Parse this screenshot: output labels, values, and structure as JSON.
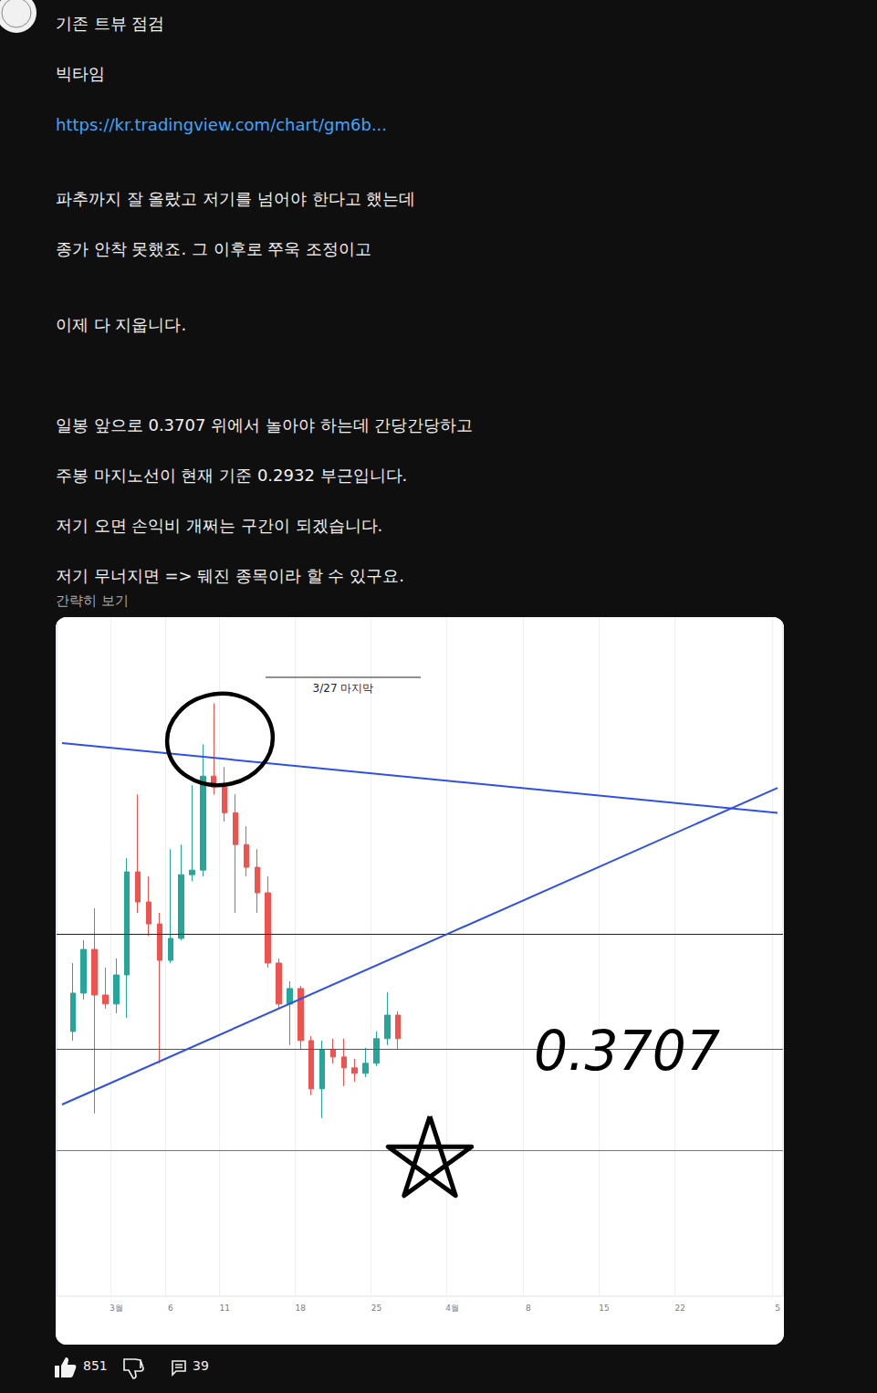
{
  "post": {
    "paragraphs": [
      "기존 트뷰 점검",
      "빅타임",
      "https://kr.tradingview.com/chart/gm6b...",
      "파추까지 잘 올랐고 저기를 넘어야 한다고 했는데",
      "종가 안착 못했죠. 그 이후로 쭈욱 조정이고",
      "이제 다 지웁니다.",
      "일봉 앞으로 0.3707 위에서 놀아야 하는데 간당간당하고",
      "주봉 마지노선이 현재 기준 0.2932 부근입니다.",
      "저기 오면 손익비 개쩌는 구간이 되겠습니다.",
      "저기 무너지면 => 뒈진 종목이라 할 수 있구요."
    ],
    "link_index": 2,
    "collapse": "간략히 보기",
    "likes": 851,
    "comments": 39
  },
  "chart_data": {
    "type": "candlestick",
    "categories": [
      null,
      null,
      null,
      null,
      null,
      "3월",
      null,
      null,
      null,
      null,
      "6",
      null,
      null,
      null,
      null,
      "11",
      null,
      null,
      null,
      null,
      null,
      null,
      "18",
      null,
      null,
      null,
      null,
      null,
      null,
      "25",
      null,
      null,
      null,
      null,
      null,
      null,
      "4월",
      null,
      null,
      null,
      null,
      null,
      null,
      "8",
      null,
      null,
      null,
      null,
      null,
      null,
      "15",
      null,
      null,
      null,
      null,
      null,
      null,
      "22",
      null,
      null,
      null,
      null,
      null,
      null,
      null,
      null,
      "5"
    ],
    "values": [
      null,
      {
        "open": 0.3836,
        "close": 0.4138,
        "low": 0.3764,
        "high": 0.4375
      },
      {
        "open": 0.4138,
        "close": 0.4482,
        "low": 0.4088,
        "high": 0.4554
      },
      {
        "open": 0.4482,
        "close": 0.4123,
        "low": 0.319,
        "high": 0.4806
      },
      {
        "open": 0.4123,
        "close": 0.4052,
        "low": 0.4016,
        "high": 0.4339
      },
      {
        "open": 0.4052,
        "close": 0.4281,
        "low": 0.398,
        "high": 0.4411
      },
      {
        "open": 0.4281,
        "close": 0.5093,
        "low": 0.3944,
        "high": 0.52
      },
      {
        "open": 0.5093,
        "close": 0.4856,
        "low": 0.477,
        "high": 0.5703
      },
      {
        "open": 0.4856,
        "close": 0.4683,
        "low": 0.459,
        "high": 0.5057
      },
      {
        "open": 0.4683,
        "close": 0.4396,
        "low": 0.3585,
        "high": 0.477
      },
      {
        "open": 0.4396,
        "close": 0.4569,
        "low": 0.4375,
        "high": 0.5272
      },
      {
        "open": 0.4569,
        "close": 0.5071,
        "low": 0.4554,
        "high": 0.5308
      },
      {
        "open": 0.5071,
        "close": 0.5107,
        "low": 0.5021,
        "high": 0.5775
      },
      {
        "open": 0.5107,
        "close": 0.5847,
        "low": 0.5057,
        "high": 0.6098
      },
      {
        "open": 0.5847,
        "close": 0.576,
        "low": 0.5703,
        "high": 0.6421
      },
      {
        "open": 0.576,
        "close": 0.5559,
        "low": 0.5488,
        "high": 0.5918
      },
      {
        "open": 0.5559,
        "close": 0.5308,
        "low": 0.477,
        "high": 0.5703
      },
      {
        "open": 0.5308,
        "close": 0.5129,
        "low": 0.5057,
        "high": 0.5452
      },
      {
        "open": 0.5129,
        "close": 0.4928,
        "low": 0.477,
        "high": 0.5272
      },
      {
        "open": 0.4928,
        "close": 0.4375,
        "low": 0.4339,
        "high": 0.5057
      },
      {
        "open": 0.4375,
        "close": 0.4052,
        "low": 0.4016,
        "high": 0.4411
      },
      {
        "open": 0.4052,
        "close": 0.4174,
        "low": 0.3729,
        "high": 0.4231
      },
      {
        "open": 0.4174,
        "close": 0.3764,
        "low": 0.3693,
        "high": 0.4195
      },
      {
        "open": 0.3764,
        "close": 0.3384,
        "low": 0.3334,
        "high": 0.38
      },
      {
        "open": 0.3384,
        "close": 0.3693,
        "low": 0.3154,
        "high": 0.3764
      },
      {
        "open": 0.3693,
        "close": 0.3635,
        "low": 0.3585,
        "high": 0.3779
      },
      {
        "open": 0.3635,
        "close": 0.3549,
        "low": 0.3405,
        "high": 0.3779
      },
      {
        "open": 0.3549,
        "close": 0.3506,
        "low": 0.3441,
        "high": 0.3621
      },
      {
        "open": 0.3506,
        "close": 0.3585,
        "low": 0.3477,
        "high": 0.3707
      },
      {
        "open": 0.3585,
        "close": 0.3779,
        "low": 0.3563,
        "high": 0.3836
      },
      {
        "open": 0.3779,
        "close": 0.3965,
        "low": 0.3729,
        "high": 0.4145
      },
      {
        "open": 0.3965,
        "close": 0.3779,
        "low": 0.3693,
        "high": 0.3994
      },
      null,
      null,
      null,
      null,
      null,
      null,
      null,
      null,
      null,
      null,
      null,
      null,
      null,
      null,
      null,
      null,
      null,
      null,
      null,
      null,
      null,
      null,
      null,
      null,
      null,
      null,
      null,
      null,
      null,
      null,
      null,
      null,
      null,
      null,
      null
    ],
    "color": {
      "up": "#26a69a",
      "down": "#ef5350"
    },
    "ylim": [
      0.175,
      0.71
    ],
    "yticks": [],
    "tick_labels": "x",
    "grid": true,
    "levels": [
      0.4576,
      0.3707,
      0.2932
    ],
    "trendlines": [
      {
        "x": [
          0,
          66
        ],
        "values": [
          0.6108,
          0.5557
        ],
        "color": "#2f50e6"
      },
      {
        "x": [
          0,
          66
        ],
        "values": [
          0.326,
          0.5755
        ],
        "color": "#2f50e6"
      }
    ],
    "annotations": [
      "3/27 마지막",
      "0.3707"
    ]
  }
}
